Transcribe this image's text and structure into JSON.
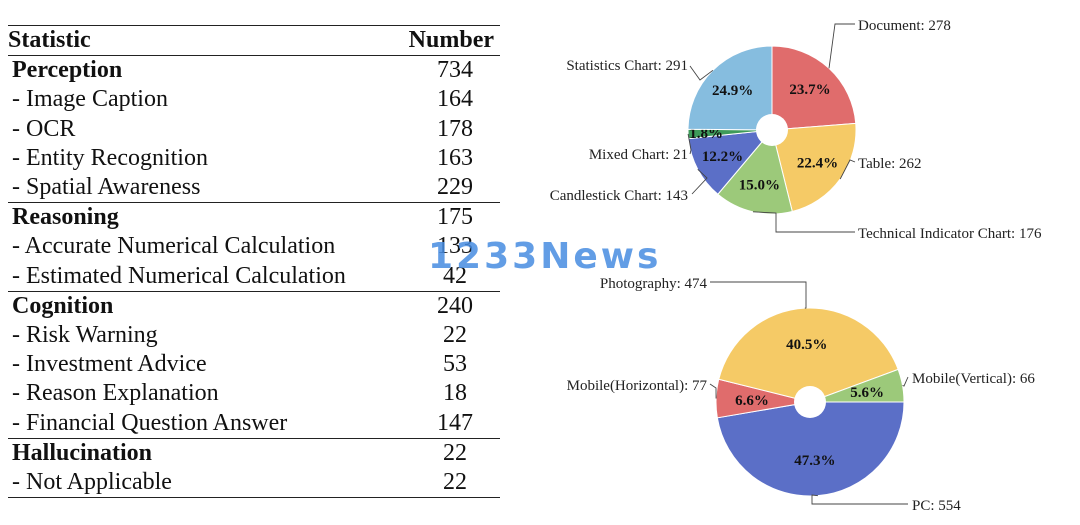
{
  "table": {
    "header": {
      "statistic": "Statistic",
      "number": "Number"
    },
    "rows": [
      {
        "label": "Perception",
        "value": "734",
        "kind": "category"
      },
      {
        "label": "- Image Caption",
        "value": "164",
        "kind": "item"
      },
      {
        "label": "- OCR",
        "value": "178",
        "kind": "item"
      },
      {
        "label": "- Entity Recognition",
        "value": "163",
        "kind": "item"
      },
      {
        "label": "- Spatial Awareness",
        "value": "229",
        "kind": "item"
      },
      {
        "label": "Reasoning",
        "value": "175",
        "kind": "category"
      },
      {
        "label": "- Accurate Numerical Calculation",
        "value": "133",
        "kind": "item"
      },
      {
        "label": "- Estimated Numerical Calculation",
        "value": "42",
        "kind": "item"
      },
      {
        "label": "Cognition",
        "value": "240",
        "kind": "category"
      },
      {
        "label": "- Risk Warning",
        "value": "22",
        "kind": "item"
      },
      {
        "label": "- Investment Advice",
        "value": "53",
        "kind": "item"
      },
      {
        "label": "- Reason Explanation",
        "value": "18",
        "kind": "item"
      },
      {
        "label": "- Financial Question Answer",
        "value": "147",
        "kind": "item"
      },
      {
        "label": "Hallucination",
        "value": "22",
        "kind": "category"
      },
      {
        "label": "- Not Applicable",
        "value": "22",
        "kind": "item"
      }
    ]
  },
  "watermark": "1233News",
  "chart_data": [
    {
      "type": "pie",
      "title": "",
      "donut_hole": true,
      "start": "top",
      "slices": [
        {
          "name": "Document",
          "value": 278,
          "percent_label": "23.7%",
          "callout": "Document: 278",
          "color": "#e06c6c"
        },
        {
          "name": "Table",
          "value": 262,
          "percent_label": "22.4%",
          "callout": "Table: 262",
          "color": "#f5ca66"
        },
        {
          "name": "Technical Indicator Chart",
          "value": 176,
          "percent_label": "15.0%",
          "callout": "Technical Indicator Chart: 176",
          "color": "#9cc97a"
        },
        {
          "name": "Candlestick Chart",
          "value": 143,
          "percent_label": "12.2%",
          "callout": "Candlestick Chart: 143",
          "color": "#5b6fc7"
        },
        {
          "name": "Mixed Chart",
          "value": 21,
          "percent_label": "1.8%",
          "callout": "Mixed Chart: 21",
          "color": "#3e9a5a"
        },
        {
          "name": "Statistics Chart",
          "value": 291,
          "percent_label": "24.9%",
          "callout": "Statistics Chart: 291",
          "color": "#86bddf"
        }
      ]
    },
    {
      "type": "pie",
      "title": "",
      "donut_hole": true,
      "start": "right",
      "slices": [
        {
          "name": "PC",
          "value": 554,
          "percent_label": "47.3%",
          "callout": "PC: 554",
          "color": "#5b6fc7"
        },
        {
          "name": "Mobile(Horizontal)",
          "value": 77,
          "percent_label": "6.6%",
          "callout": "Mobile(Horizontal): 77",
          "color": "#e06c6c"
        },
        {
          "name": "Photography",
          "value": 474,
          "percent_label": "40.5%",
          "callout": "Photography: 474",
          "color": "#f5ca66"
        },
        {
          "name": "Mobile(Vertical)",
          "value": 66,
          "percent_label": "5.6%",
          "callout": "Mobile(Vertical): 66",
          "color": "#9cc97a"
        }
      ]
    }
  ]
}
